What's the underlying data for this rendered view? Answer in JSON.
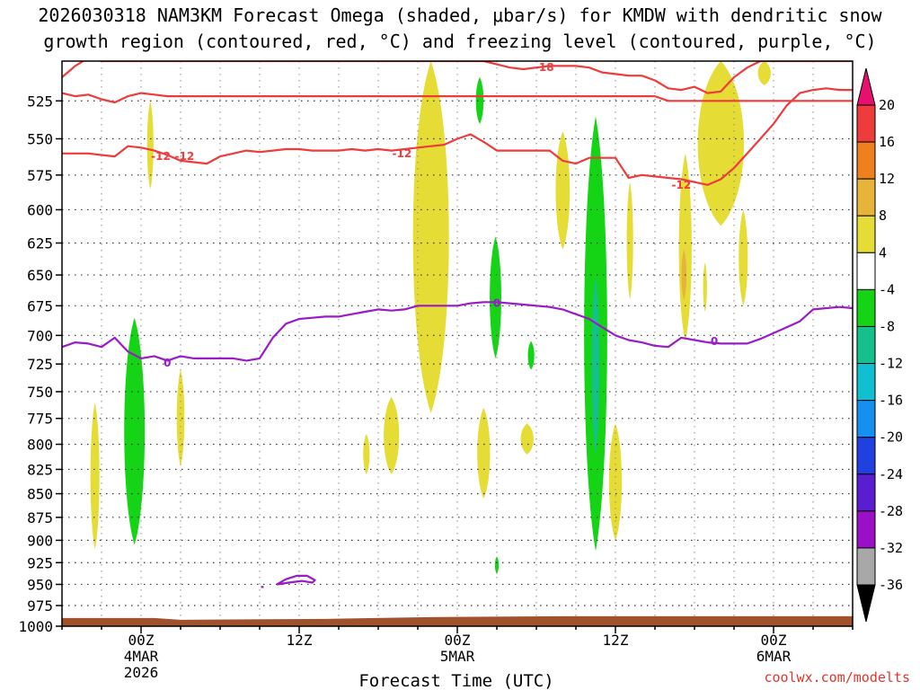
{
  "chart_data": {
    "type": "heatmap",
    "title_line1": "2026030318 NAM3KM Forecast Omega (shaded, μbar/s) for KMDW with dendritic snow",
    "title_line2": "growth region (contoured, red, °C) and freezing level (contoured, purple, °C)",
    "xlabel": "Forecast Time (UTC)",
    "credit": "coolwx.com/modelts",
    "x_unit": "hours since 2026-03-03 18Z",
    "xlim": [
      0,
      60
    ],
    "y_unit": "hPa",
    "ylim": [
      1000,
      500
    ],
    "y_ticks": [
      525,
      550,
      575,
      600,
      625,
      650,
      675,
      700,
      725,
      750,
      775,
      800,
      825,
      850,
      875,
      900,
      925,
      950,
      975,
      1000
    ],
    "x_ticks": [
      {
        "t": 6,
        "labels": [
          "00Z",
          "4MAR",
          "2026"
        ]
      },
      {
        "t": 18,
        "labels": [
          "12Z"
        ]
      },
      {
        "t": 30,
        "labels": [
          "00Z",
          "5MAR"
        ]
      },
      {
        "t": 42,
        "labels": [
          "12Z"
        ]
      },
      {
        "t": 54,
        "labels": [
          "00Z",
          "6MAR"
        ]
      }
    ],
    "colorbar": {
      "levels": [
        {
          "value": 20,
          "color": "#e8106e"
        },
        {
          "value": 16,
          "color": "#ee3b3b"
        },
        {
          "value": 12,
          "color": "#f07f1e"
        },
        {
          "value": 8,
          "color": "#e7b43a"
        },
        {
          "value": 4,
          "color": "#e5dc35"
        },
        {
          "value": -4,
          "color": "#ffffff"
        },
        {
          "value": -8,
          "color": "#15d415"
        },
        {
          "value": -12,
          "color": "#15c08c"
        },
        {
          "value": -16,
          "color": "#10c0d0"
        },
        {
          "value": -20,
          "color": "#1690f0"
        },
        {
          "value": -24,
          "color": "#2040e0"
        },
        {
          "value": -28,
          "color": "#5a1dd0"
        },
        {
          "value": -32,
          "color": "#9a10c8"
        },
        {
          "value": -36,
          "color": "#a8a8a8"
        }
      ],
      "tick_labels": [
        "20",
        "16",
        "12",
        "8",
        "4",
        "-4",
        "-8",
        "-12",
        "-16",
        "-20",
        "-24",
        "-28",
        "-32",
        "-36"
      ],
      "over_color": "#e8106e",
      "under_color": "#000000"
    },
    "omega_regions": [
      {
        "name": "yellow-1",
        "value": 4,
        "color": "#e5dc35",
        "t": 2.5,
        "dt": 0.35,
        "p": [
          910,
          760
        ]
      },
      {
        "name": "green-1",
        "value": -8,
        "color": "#15d415",
        "t": 5.5,
        "dt": 0.8,
        "p": [
          905,
          685
        ]
      },
      {
        "name": "yellow-2",
        "value": 4,
        "color": "#e5dc35",
        "t": 6.7,
        "dt": 0.25,
        "p": [
          585,
          525
        ]
      },
      {
        "name": "yellow-3",
        "value": 4,
        "color": "#e5dc35",
        "t": 9.0,
        "dt": 0.3,
        "p": [
          822,
          730
        ]
      },
      {
        "name": "yellow-4",
        "value": 4,
        "color": "#e5dc35",
        "t": 23.1,
        "dt": 0.25,
        "p": [
          830,
          790
        ]
      },
      {
        "name": "yellow-5",
        "value": 4,
        "color": "#e5dc35",
        "t": 25.0,
        "dt": 0.6,
        "p": [
          830,
          755
        ]
      },
      {
        "name": "yellow-6",
        "value": 4,
        "color": "#e5dc35",
        "t": 28.0,
        "dt": 1.4,
        "p": [
          770,
          500
        ]
      },
      {
        "name": "green-2",
        "value": -8,
        "color": "#15d415",
        "t": 31.7,
        "dt": 0.3,
        "p": [
          540,
          510
        ]
      },
      {
        "name": "yellow-7",
        "value": 4,
        "color": "#e5dc35",
        "t": 32.0,
        "dt": 0.5,
        "p": [
          855,
          765
        ]
      },
      {
        "name": "green-3",
        "value": -8,
        "color": "#15d415",
        "t": 32.9,
        "dt": 0.45,
        "p": [
          720,
          620
        ]
      },
      {
        "name": "yellow-8",
        "value": 4,
        "color": "#e5dc35",
        "t": 35.3,
        "dt": 0.5,
        "p": [
          810,
          780
        ]
      },
      {
        "name": "green-4",
        "value": -8,
        "color": "#15d415",
        "t": 35.6,
        "dt": 0.25,
        "p": [
          730,
          705
        ]
      },
      {
        "name": "green-5",
        "value": -8,
        "color": "#15d415",
        "t": 33.0,
        "dt": 0.15,
        "p": [
          938,
          918
        ]
      },
      {
        "name": "yellow-9",
        "value": 4,
        "color": "#e5dc35",
        "t": 38.0,
        "dt": 0.55,
        "p": [
          630,
          545
        ]
      },
      {
        "name": "green-6",
        "value": -8,
        "color": "#15d415",
        "t": 40.5,
        "dt": 0.9,
        "p": [
          912,
          535
        ]
      },
      {
        "name": "teal-1",
        "value": -12,
        "color": "#15c08c",
        "t": 40.5,
        "dt": 0.3,
        "p": [
          810,
          650
        ]
      },
      {
        "name": "yellow-10",
        "value": 4,
        "color": "#e5dc35",
        "t": 42.0,
        "dt": 0.5,
        "p": [
          900,
          780
        ]
      },
      {
        "name": "yellow-11",
        "value": 4,
        "color": "#e5dc35",
        "t": 43.1,
        "dt": 0.25,
        "p": [
          670,
          580
        ]
      },
      {
        "name": "yellow-12",
        "value": 4,
        "color": "#e5dc35",
        "t": 47.3,
        "dt": 0.5,
        "p": [
          705,
          560
        ]
      },
      {
        "name": "orange-1",
        "value": 8,
        "color": "#e7b43a",
        "t": 47.2,
        "dt": 0.2,
        "p": [
          670,
          630
        ]
      },
      {
        "name": "yellow-13",
        "value": 4,
        "color": "#e5dc35",
        "t": 48.8,
        "dt": 0.15,
        "p": [
          680,
          640
        ]
      },
      {
        "name": "yellow-14",
        "value": 4,
        "color": "#e5dc35",
        "t": 50.0,
        "dt": 1.8,
        "p": [
          612,
          500
        ]
      },
      {
        "name": "yellow-15",
        "value": 4,
        "color": "#e5dc35",
        "t": 51.7,
        "dt": 0.35,
        "p": [
          675,
          600
        ]
      },
      {
        "name": "yellow-16",
        "value": 4,
        "color": "#e5dc35",
        "t": 53.3,
        "dt": 0.5,
        "p": [
          515,
          500
        ]
      }
    ],
    "dgz_contour_label_values": [
      "-18",
      "-12",
      "-12",
      "-12"
    ],
    "freezing_contour_label_values": [
      "0",
      "0",
      "0"
    ],
    "series": [
      {
        "name": "DGZ -18C contour",
        "color": "#ee3b3b",
        "label": "-18",
        "label_at": [
          36.6,
          504
        ],
        "t": [
          0,
          1,
          2,
          3,
          4,
          5,
          6,
          8,
          10,
          12,
          14,
          16,
          18,
          20,
          22,
          24,
          26,
          28,
          30,
          32,
          33,
          34,
          35,
          36,
          37,
          38,
          39,
          40,
          41,
          42,
          43,
          44,
          45,
          46,
          47,
          48,
          49,
          50,
          51,
          52,
          53,
          54,
          55,
          56,
          57,
          58,
          59,
          60
        ],
        "p": [
          510,
          503,
          498,
          500,
          500,
          500,
          500,
          500,
          500,
          500,
          500,
          500,
          500,
          500,
          500,
          500,
          500,
          500,
          500,
          500,
          502,
          504,
          505,
          504,
          503,
          503,
          503,
          504,
          507,
          508,
          509,
          509,
          512,
          517,
          518,
          516,
          520,
          519,
          510,
          504,
          500,
          500,
          500,
          500,
          500,
          500,
          500,
          500
        ]
      },
      {
        "name": "DGZ -12C contour upper",
        "color": "#ee3b3b",
        "label": "-12",
        "label_at": [
          25.8,
          560
        ],
        "t": [
          0,
          1,
          2,
          3,
          4,
          5,
          6,
          7,
          8,
          9,
          10,
          11,
          12,
          13,
          14,
          15,
          16,
          17,
          18,
          19,
          20,
          21,
          22,
          23,
          24,
          25,
          26,
          27,
          28,
          29,
          30,
          31,
          32,
          33,
          34,
          35,
          36,
          37,
          38,
          39,
          40,
          41,
          42,
          43,
          44,
          45,
          46,
          47,
          48,
          49,
          50,
          51,
          52,
          53,
          54,
          55,
          56,
          57,
          58,
          59,
          60
        ],
        "p": [
          520,
          522,
          521,
          524,
          526,
          522,
          520,
          521,
          522,
          522,
          522,
          522,
          522,
          522,
          522,
          522,
          522,
          522,
          522,
          522,
          522,
          522,
          522,
          522,
          522,
          522,
          522,
          522,
          522,
          522,
          522,
          522,
          522,
          522,
          522,
          522,
          522,
          522,
          522,
          522,
          522,
          522,
          522,
          522,
          522,
          522,
          525,
          525,
          525,
          525,
          525,
          525,
          525,
          525,
          525,
          525,
          525,
          525,
          525,
          525,
          525
        ]
      },
      {
        "name": "DGZ -12C contour lower",
        "color": "#ee3b3b",
        "label": "-12",
        "label_at": [
          9.3,
          562
        ],
        "t": [
          0,
          1,
          2,
          3,
          4,
          5,
          6,
          7,
          8,
          9,
          10,
          11,
          12,
          13,
          14,
          15,
          16,
          17,
          18,
          19,
          20,
          21,
          22,
          23,
          24,
          25,
          26,
          27,
          28,
          29,
          30,
          31,
          32,
          33,
          34,
          35,
          36,
          37,
          38,
          39,
          40,
          41,
          42,
          43,
          44,
          45,
          46,
          47,
          48,
          49,
          50,
          51,
          52,
          53,
          54,
          55,
          56,
          57,
          58,
          59,
          60
        ],
        "p": [
          560,
          560,
          560,
          561,
          562,
          555,
          556,
          558,
          561,
          565,
          566,
          567,
          562,
          560,
          558,
          559,
          558,
          557,
          557,
          558,
          558,
          558,
          557,
          558,
          557,
          558,
          557,
          556,
          555,
          554,
          550,
          547,
          552,
          558,
          558,
          558,
          558,
          558,
          565,
          567,
          563,
          563,
          563,
          577,
          575,
          576,
          577,
          578,
          580,
          582,
          578,
          570,
          560,
          550,
          540,
          528,
          520,
          518,
          517,
          518,
          518
        ]
      },
      {
        "name": "Freezing level 0C",
        "color": "#9a1bc8",
        "label": "0",
        "label_at": [
          49.5,
          705
        ],
        "t": [
          0,
          1,
          2,
          3,
          4,
          5,
          6,
          7,
          8,
          9,
          10,
          11,
          12,
          13,
          14,
          15,
          16,
          17,
          18,
          19,
          20,
          21,
          22,
          23,
          24,
          25,
          26,
          27,
          28,
          29,
          30,
          31,
          32,
          33,
          34,
          35,
          36,
          37,
          38,
          39,
          40,
          41,
          42,
          43,
          44,
          45,
          46,
          47,
          48,
          49,
          50,
          51,
          52,
          53,
          54,
          55,
          56,
          57,
          58,
          59,
          60
        ],
        "p": [
          710,
          706,
          707,
          710,
          702,
          714,
          720,
          718,
          722,
          718,
          720,
          720,
          720,
          720,
          722,
          720,
          702,
          690,
          686,
          685,
          684,
          684,
          682,
          680,
          678,
          679,
          678,
          675,
          675,
          675,
          675,
          673,
          672,
          672,
          673,
          674,
          675,
          676,
          678,
          682,
          686,
          693,
          700,
          704,
          706,
          709,
          710,
          702,
          704,
          706,
          707,
          707,
          707,
          703,
          698,
          693,
          688,
          678,
          677,
          676,
          677
        ]
      },
      {
        "name": "Freezing level 0C small loop",
        "color": "#9a1bc8",
        "label": "",
        "t": [
          16.3,
          17.0,
          17.8,
          18.6,
          19.2,
          19.0,
          18.2,
          17.2,
          16.3
        ],
        "p": [
          950,
          944,
          940,
          940,
          945,
          948,
          946,
          948,
          950
        ]
      },
      {
        "name": "Freezing level 0C tiny dot",
        "color": "#9a1bc8",
        "label": "",
        "t": [
          15.1,
          15.3
        ],
        "p": [
          953,
          953
        ]
      }
    ],
    "ground": {
      "color": "#a0522d",
      "p_top": 990
    }
  }
}
